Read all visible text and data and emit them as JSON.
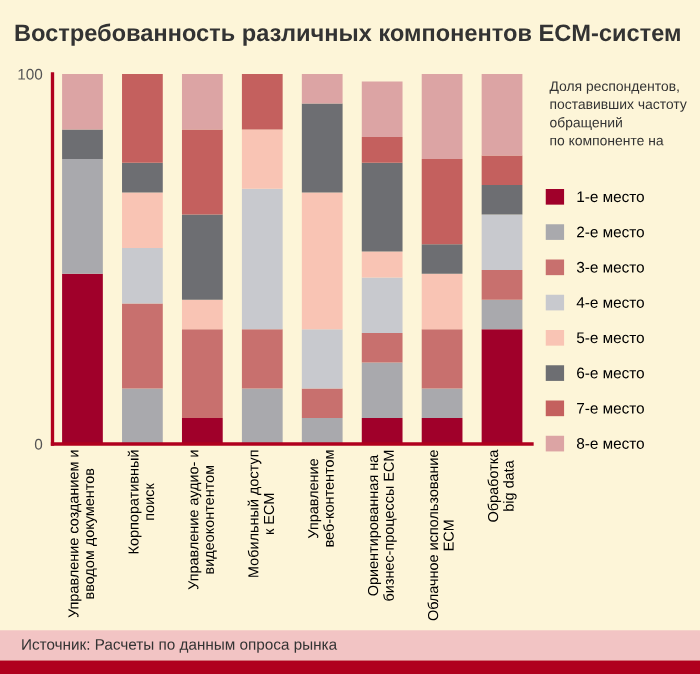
{
  "chart_data": {
    "type": "bar",
    "stacked": true,
    "title": "Востребованность различных компонентов ECM-систем",
    "categories": [
      "Управление созданием и\nвводом документов",
      "Корпоративный\nпоиск",
      "Управление аудио- и\nвидеоконтентом",
      "Мобильный доступ\nк ECM",
      "Управление\nвеб-контентом",
      "Ориентированная на\nбизнес-процессы ECM",
      "Облачное использование\nECM",
      "Обработка\nbig data"
    ],
    "series": [
      {
        "name": "1-е место",
        "color": "#a0002a",
        "values": [
          46,
          null,
          7,
          null,
          null,
          7,
          7,
          31
        ]
      },
      {
        "name": "2-е место",
        "color": "#a9a9ad",
        "values": [
          31,
          15,
          null,
          15,
          7,
          15,
          8,
          8
        ]
      },
      {
        "name": "3-е место",
        "color": "#c8706e",
        "values": [
          null,
          23,
          24,
          16,
          8,
          8,
          16,
          8
        ]
      },
      {
        "name": "4-е место",
        "color": "#c8c9ce",
        "values": [
          null,
          15,
          null,
          38,
          16,
          15,
          null,
          15
        ]
      },
      {
        "name": "5-е место",
        "color": "#f9c4b4",
        "values": [
          null,
          15,
          8,
          16,
          37,
          7,
          15,
          null
        ]
      },
      {
        "name": "6-е место",
        "color": "#6d6e72",
        "values": [
          8,
          8,
          23,
          null,
          24,
          24,
          8,
          8
        ]
      },
      {
        "name": "7-е место",
        "color": "#c4605e",
        "values": [
          null,
          24,
          23,
          15,
          null,
          7,
          23,
          8
        ]
      },
      {
        "name": "8-е место",
        "color": "#dca4a4",
        "values": [
          15,
          null,
          15,
          null,
          8,
          15,
          23,
          22
        ]
      }
    ],
    "legend_title": "Доля респондентов,\nпоставивших частоту\nобращений\nпо компоненте на",
    "legend": "right",
    "ylim": [
      0,
      100
    ],
    "yticks": [
      0,
      100
    ],
    "grid": false,
    "annotations": [
      "Источник: Расчеты по данным опроса рынка"
    ]
  }
}
